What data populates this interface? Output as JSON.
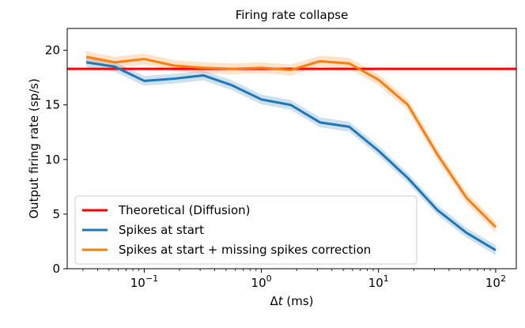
{
  "chart_data": {
    "type": "line",
    "title": "Firing rate collapse",
    "xlabel_prefix": "Δ",
    "xlabel_var": "t",
    "xlabel_suffix": " (ms)",
    "ylabel": "Output firing rate (sp/s)",
    "xscale": "log",
    "xlim": [
      0.022,
      150
    ],
    "ylim": [
      0,
      22
    ],
    "yticks": [
      0,
      5,
      10,
      15,
      20
    ],
    "xticks": [
      {
        "value": 0.1,
        "base": "10",
        "exp": "−1"
      },
      {
        "value": 1,
        "base": "10",
        "exp": "0"
      },
      {
        "value": 10,
        "base": "10",
        "exp": "1"
      },
      {
        "value": 100,
        "base": "10",
        "exp": "2"
      }
    ],
    "legend_position": "lower-left",
    "series": [
      {
        "name": "Theoretical (Diffusion)",
        "kind": "hline",
        "color": "#ff0000",
        "y": 18.3
      },
      {
        "name": "Spikes at start",
        "kind": "line",
        "color": "#1f77b4",
        "x": [
          0.032,
          0.056,
          0.1,
          0.18,
          0.32,
          0.56,
          1.0,
          1.78,
          3.16,
          5.62,
          10,
          17.8,
          31.6,
          56.2,
          100
        ],
        "y": [
          18.9,
          18.5,
          17.2,
          17.4,
          17.7,
          16.8,
          15.5,
          15.0,
          13.4,
          13.0,
          10.8,
          8.3,
          5.4,
          3.3,
          1.7
        ],
        "band": 0.45
      },
      {
        "name": "Spikes at start + missing spikes correction",
        "kind": "line",
        "color": "#ff7f0e",
        "x": [
          0.032,
          0.056,
          0.1,
          0.18,
          0.32,
          0.56,
          1.0,
          1.78,
          3.16,
          5.62,
          10,
          17.8,
          31.6,
          56.2,
          100
        ],
        "y": [
          19.4,
          18.9,
          19.2,
          18.6,
          18.4,
          18.3,
          18.4,
          18.2,
          19.0,
          18.8,
          17.3,
          15.0,
          10.5,
          6.5,
          3.8
        ],
        "band": 0.5
      }
    ]
  }
}
